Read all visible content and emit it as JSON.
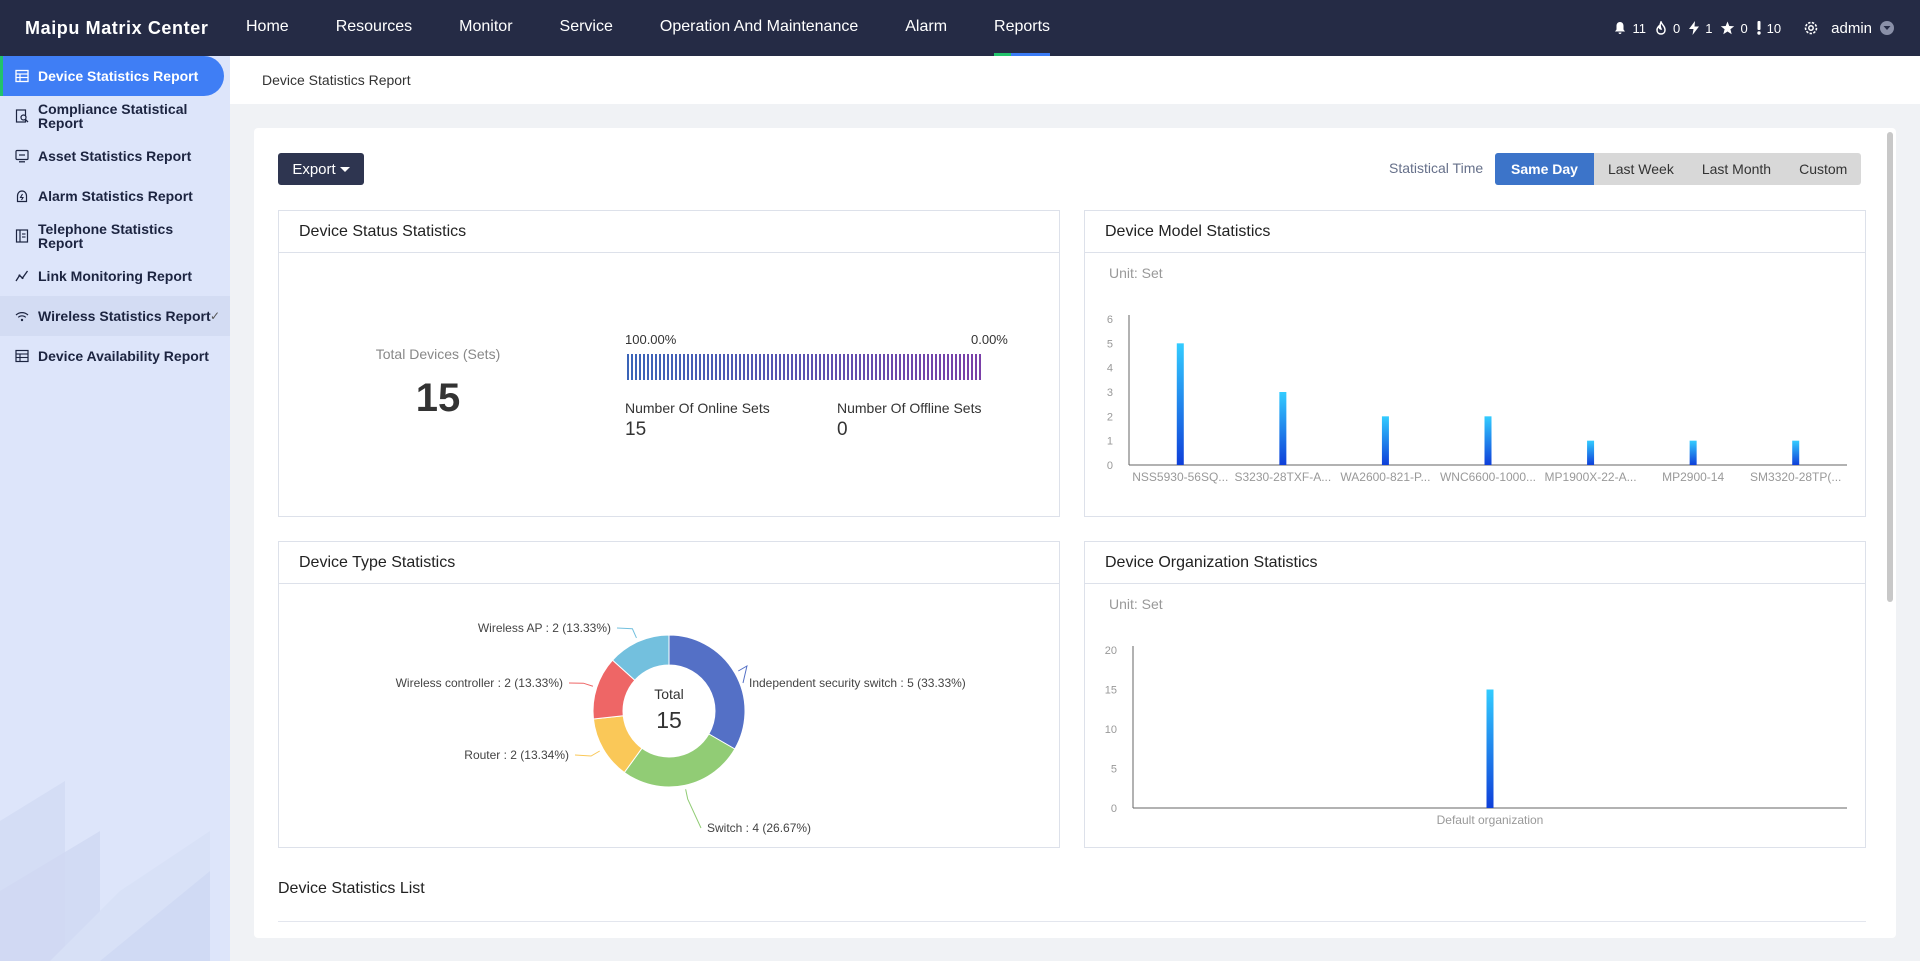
{
  "app": {
    "title": "Maipu Matrix Center"
  },
  "nav": [
    {
      "label": "Home",
      "active": false
    },
    {
      "label": "Resources",
      "active": false
    },
    {
      "label": "Monitor",
      "active": false
    },
    {
      "label": "Service",
      "active": false
    },
    {
      "label": "Operation And Maintenance",
      "active": false
    },
    {
      "label": "Alarm",
      "active": false
    },
    {
      "label": "Reports",
      "active": true
    }
  ],
  "status": {
    "bell": "11",
    "fire": "0",
    "bolt": "1",
    "star": "0",
    "exclaim": "10",
    "user": "admin"
  },
  "sidebar": {
    "items": [
      {
        "label": "Device Statistics Report",
        "icon": "table-icon",
        "active": true
      },
      {
        "label": "Compliance Statistical Report",
        "icon": "doc-search-icon",
        "active": false
      },
      {
        "label": "Asset Statistics Report",
        "icon": "monitor-icon",
        "active": false
      },
      {
        "label": "Alarm Statistics Report",
        "icon": "alarm-icon",
        "active": false
      },
      {
        "label": "Telephone Statistics Report",
        "icon": "phone-book-icon",
        "active": false
      },
      {
        "label": "Link Monitoring Report",
        "icon": "line-chart-icon",
        "active": false
      },
      {
        "label": "Wireless Statistics Report",
        "icon": "wifi-icon",
        "active": false,
        "check": "✓"
      },
      {
        "label": "Device Availability Report",
        "icon": "table-icon",
        "active": false
      }
    ]
  },
  "breadcrumb": "Device Statistics Report",
  "toolbar": {
    "export_label": "Export",
    "time_label": "Statistical Time",
    "time_options": [
      "Same Day",
      "Last Week",
      "Last Month",
      "Custom"
    ],
    "time_selected": "Same Day"
  },
  "status_panel": {
    "title": "Device Status Statistics",
    "total_label": "Total Devices (Sets)",
    "total_value": "15",
    "online_pct": "100.00%",
    "offline_pct": "0.00%",
    "online_label": "Number Of Online Sets",
    "online_value": "15",
    "offline_label": "Number Of Offline Sets",
    "offline_value": "0",
    "online_fraction": 1.0
  },
  "model_panel": {
    "title": "Device Model Statistics",
    "unit": "Unit: Set"
  },
  "type_panel": {
    "title": "Device Type Statistics",
    "center_label": "Total",
    "center_value": "15"
  },
  "org_panel": {
    "title": "Device Organization Statistics",
    "unit": "Unit: Set"
  },
  "list": {
    "title": "Device Statistics List"
  },
  "chart_data": [
    {
      "type": "bar",
      "title": "Device Model Statistics",
      "unit": "Unit: Set",
      "categories": [
        "NSS5930-56SQ...",
        "S3230-28TXF-A...",
        "WA2600-821-P...",
        "WNC6600-1000...",
        "MP1900X-22-A...",
        "MP2900-14",
        "SM3320-28TP(..."
      ],
      "values": [
        5,
        3,
        2,
        2,
        1,
        1,
        1
      ],
      "ylim": [
        0,
        6
      ],
      "yticks": [
        0,
        1,
        2,
        3,
        4,
        5,
        6
      ]
    },
    {
      "type": "pie",
      "title": "Device Type Statistics",
      "center_label": "Total",
      "center_value": "15",
      "slices": [
        {
          "name": "Independent security switch",
          "value": 5,
          "percent": "33.33%",
          "color": "#5470c6",
          "label": "Independent security switch : 5 (33.33%)"
        },
        {
          "name": "Switch",
          "value": 4,
          "percent": "26.67%",
          "color": "#91cc75",
          "label": "Switch : 4 (26.67%)"
        },
        {
          "name": "Router",
          "value": 2,
          "percent": "13.34%",
          "color": "#fac858",
          "label": "Router : 2 (13.34%)"
        },
        {
          "name": "Wireless controller",
          "value": 2,
          "percent": "13.33%",
          "color": "#ee6666",
          "label": "Wireless controller : 2 (13.33%)"
        },
        {
          "name": "Wireless AP",
          "value": 2,
          "percent": "13.33%",
          "color": "#73c0de",
          "label": "Wireless AP : 2 (13.33%)"
        }
      ]
    },
    {
      "type": "bar",
      "title": "Device Organization Statistics",
      "unit": "Unit: Set",
      "categories": [
        "Default organization"
      ],
      "values": [
        15
      ],
      "ylim": [
        0,
        20
      ],
      "yticks": [
        0,
        5,
        10,
        15,
        20
      ]
    }
  ],
  "colors": {
    "topbar": "#252b45",
    "accent": "#3f7ef5",
    "sidebar": "#dde5fa",
    "bar_top": "#33ccff",
    "bar_bottom": "#0f3fd9",
    "online": "#3a64b8",
    "offline": "#7a3fa8"
  }
}
